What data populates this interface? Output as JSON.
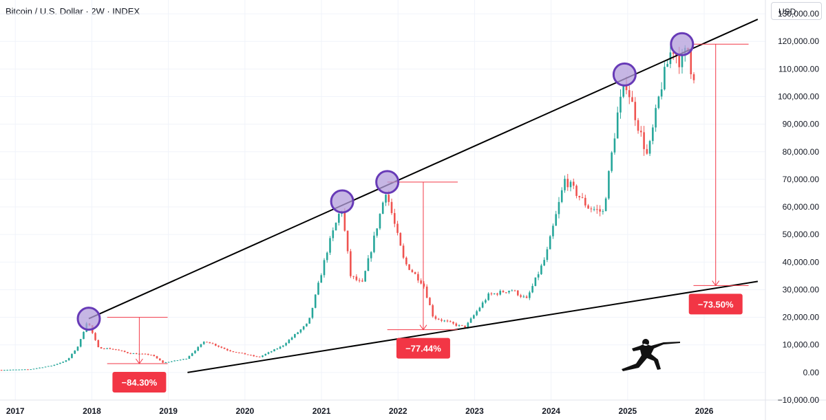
{
  "header": {
    "symbol": "Bitcoin / U.S. Dollar · 2W · INDEX",
    "currency": "USD"
  },
  "colors": {
    "up": "#26a69a",
    "down": "#ef5350",
    "trendline": "#000000",
    "annotation": "#f23645",
    "circle_fill": "#b39ddb",
    "circle_stroke": "#673ab7"
  },
  "chart_data": {
    "type": "candlestick",
    "title": "Bitcoin / U.S. Dollar · 2W · INDEX",
    "x_ticks": [
      "2017",
      "2018",
      "2019",
      "2020",
      "2021",
      "2022",
      "2023",
      "2024",
      "2025",
      "2026"
    ],
    "y_ticks": [
      "130,000.00",
      "120,000.00",
      "110,000.00",
      "100,000.00",
      "90,000.00",
      "80,000.00",
      "70,000.00",
      "60,000.00",
      "50,000.00",
      "40,000.00",
      "30,000.00",
      "20,000.00",
      "10,000.00",
      "0.00",
      "−10,000.00"
    ],
    "y_tick_values": [
      130000,
      120000,
      110000,
      100000,
      90000,
      80000,
      70000,
      60000,
      50000,
      40000,
      30000,
      20000,
      10000,
      0,
      -10000
    ],
    "ylim": [
      -10000,
      135000
    ],
    "xlim": [
      2016.8,
      2026.8
    ],
    "grid": true,
    "price_path": [
      [
        2016.8,
        900
      ],
      [
        2017.2,
        1100
      ],
      [
        2017.5,
        2500
      ],
      [
        2017.7,
        4500
      ],
      [
        2017.85,
        10000
      ],
      [
        2017.96,
        19000
      ],
      [
        2018.1,
        9000
      ],
      [
        2018.3,
        8500
      ],
      [
        2018.5,
        7000
      ],
      [
        2018.8,
        6400
      ],
      [
        2018.95,
        3500
      ],
      [
        2019.25,
        5000
      ],
      [
        2019.5,
        11500
      ],
      [
        2019.8,
        8000
      ],
      [
        2020.2,
        5500
      ],
      [
        2020.5,
        9500
      ],
      [
        2020.85,
        18000
      ],
      [
        2021.1,
        45000
      ],
      [
        2021.28,
        60000
      ],
      [
        2021.4,
        35000
      ],
      [
        2021.55,
        32000
      ],
      [
        2021.7,
        48000
      ],
      [
        2021.86,
        66000
      ],
      [
        2022.1,
        40000
      ],
      [
        2022.35,
        32000
      ],
      [
        2022.48,
        20000
      ],
      [
        2022.8,
        17000
      ],
      [
        2022.9,
        16500
      ],
      [
        2023.2,
        28000
      ],
      [
        2023.5,
        30000
      ],
      [
        2023.7,
        26500
      ],
      [
        2023.95,
        42000
      ],
      [
        2024.2,
        70000
      ],
      [
        2024.5,
        60000
      ],
      [
        2024.7,
        58000
      ],
      [
        2024.9,
        96000
      ],
      [
        2025.0,
        105000
      ],
      [
        2025.15,
        90000
      ],
      [
        2025.28,
        78000
      ],
      [
        2025.45,
        103000
      ],
      [
        2025.6,
        118000
      ],
      [
        2025.72,
        112000
      ],
      [
        2025.8,
        118000
      ],
      [
        2025.86,
        108000
      ]
    ],
    "trendlines": [
      {
        "name": "upper",
        "x": [
          2017.96,
          2026.7
        ],
        "y": [
          19500,
          128000
        ]
      },
      {
        "name": "lower",
        "x": [
          2019.25,
          2026.7
        ],
        "y": [
          0,
          33000
        ]
      }
    ],
    "highlights": [
      {
        "x": 2017.96,
        "y": 19500
      },
      {
        "x": 2021.27,
        "y": 62000
      },
      {
        "x": 2021.86,
        "y": 69000
      },
      {
        "x": 2024.96,
        "y": 108000
      },
      {
        "x": 2025.71,
        "y": 119000
      }
    ],
    "drawdowns": [
      {
        "label": "−84.30%",
        "x0": 2018.2,
        "x1": 2018.99,
        "x_arrow": 2018.62,
        "y_top": 20000,
        "y_bottom": 3200
      },
      {
        "label": "−77.44%",
        "x0": 2021.86,
        "x1": 2022.78,
        "x_arrow": 2022.33,
        "y_top": 69000,
        "y_bottom": 15500
      },
      {
        "label": "−73.50%",
        "x0": 2025.86,
        "x1": 2026.58,
        "x_arrow": 2026.15,
        "y_top": 119000,
        "y_bottom": 31500
      }
    ]
  }
}
